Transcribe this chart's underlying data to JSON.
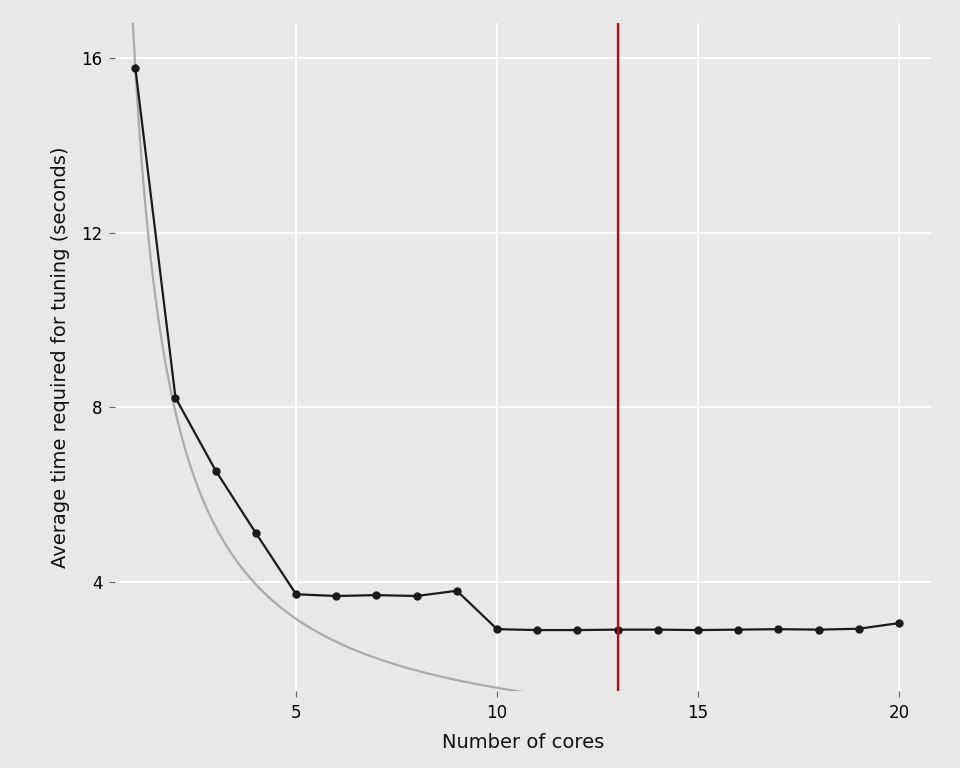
{
  "black_x": [
    1,
    2,
    3,
    4,
    5,
    6,
    7,
    8,
    9,
    10,
    11,
    12,
    13,
    14,
    15,
    16,
    17,
    18,
    19,
    20
  ],
  "black_y": [
    15.78,
    8.22,
    6.55,
    5.12,
    3.72,
    3.68,
    3.7,
    3.68,
    3.8,
    2.92,
    2.9,
    2.9,
    2.91,
    2.91,
    2.9,
    2.91,
    2.92,
    2.91,
    2.93,
    3.06
  ],
  "grey_base": 15.78,
  "vline_x": 13,
  "vline_color": "#cc0000",
  "grey_color": "#aaaaaa",
  "black_color": "#1a1a1a",
  "bg_color": "#e8e8e8",
  "panel_bg": "#e8e8e8",
  "grid_color": "#ffffff",
  "xlabel": "Number of cores",
  "ylabel": "Average time required for tuning (seconds)",
  "xlim": [
    0.5,
    20.8
  ],
  "ylim": [
    1.5,
    16.8
  ],
  "yticks": [
    4,
    8,
    12,
    16
  ],
  "xticks": [
    5,
    10,
    15,
    20
  ],
  "axis_fontsize": 14,
  "tick_fontsize": 12,
  "line_width": 1.6,
  "marker_size": 5.0
}
